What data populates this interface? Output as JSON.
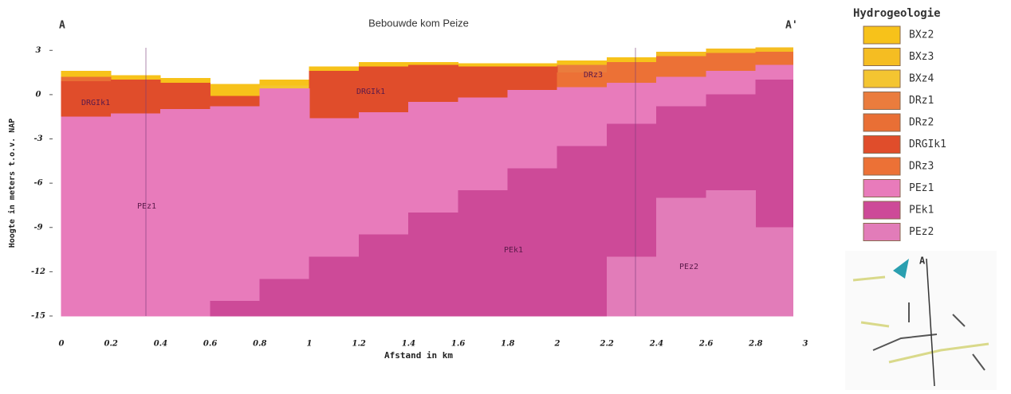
{
  "chart_data": {
    "type": "cross-section",
    "title": "Bebouwde kom Peize",
    "x_label": "Afstand in km",
    "y_label": "Hoogte in meters t.o.v. NAP",
    "section_labels": [
      "A",
      "A'"
    ],
    "legend_title": "Hydrogeologie",
    "unit_labels": [
      "DRGIk1",
      "DRGIk1",
      "DRz3",
      "PEz1",
      "PEk1",
      "PEz2"
    ],
    "xlim": [
      0,
      3
    ],
    "ylim": [
      -15,
      3.5
    ],
    "xticks": [
      0,
      0.2,
      0.4,
      0.6,
      0.8,
      1,
      1.2,
      1.4,
      1.6,
      1.8,
      2,
      2.2,
      2.4,
      2.6,
      2.8,
      3
    ],
    "yticks": [
      3,
      0,
      -3,
      -6,
      -9,
      -12,
      -15
    ],
    "bins": [
      0,
      0.2,
      0.4,
      0.6,
      0.8,
      1,
      1.2,
      1.4,
      1.6,
      1.8,
      2,
      2.2,
      2.4,
      2.6,
      2.8,
      2.95
    ],
    "series": [
      {
        "name": "BXz2",
        "color": "#f7c21a",
        "base": [
          1.2,
          1.0,
          0.8,
          -0.1,
          0.6,
          1.6,
          1.9,
          2.0,
          1.9,
          1.9,
          2.0,
          2.2,
          null,
          null,
          null
        ],
        "top": [
          1.6,
          1.3,
          1.1,
          0.7,
          1.0,
          1.9,
          2.2,
          2.2,
          2.1,
          2.1,
          2.3,
          2.5,
          null,
          null,
          null
        ]
      },
      {
        "name": "BXz3",
        "color": "#f5bd22",
        "base": [
          null,
          null,
          null,
          null,
          null,
          null,
          null,
          null,
          null,
          null,
          null,
          null,
          2.6,
          2.8,
          2.9
        ],
        "top": [
          null,
          null,
          null,
          null,
          null,
          null,
          null,
          null,
          null,
          null,
          null,
          null,
          2.9,
          3.1,
          3.2
        ]
      },
      {
        "name": "BXz4",
        "color": "#f4c531",
        "base": [
          null,
          null,
          null,
          null,
          0.4,
          null,
          null,
          null,
          null,
          null,
          null,
          null,
          null,
          null,
          null
        ],
        "top": [
          null,
          null,
          null,
          null,
          0.6,
          null,
          null,
          null,
          null,
          null,
          null,
          null,
          null,
          null,
          null
        ]
      },
      {
        "name": "DRz1",
        "color": "#ea7c3d",
        "base": [
          null,
          null,
          null,
          null,
          null,
          null,
          null,
          null,
          null,
          null,
          1.5,
          null,
          null,
          null,
          null
        ],
        "top": [
          null,
          null,
          null,
          null,
          null,
          null,
          null,
          null,
          null,
          null,
          2.0,
          null,
          null,
          null,
          null
        ]
      },
      {
        "name": "DRz2",
        "color": "#e96f35",
        "base": [
          0.9,
          null,
          null,
          null,
          null,
          null,
          null,
          null,
          null,
          null,
          null,
          null,
          null,
          null,
          null
        ],
        "top": [
          1.2,
          null,
          null,
          null,
          null,
          null,
          null,
          null,
          null,
          null,
          null,
          null,
          null,
          null,
          null
        ]
      },
      {
        "name": "DRGIk1",
        "color": "#e04d2b",
        "base": [
          -1.5,
          -1.3,
          -1.0,
          -0.8,
          null,
          -1.6,
          -1.2,
          -0.5,
          -0.2,
          0.3,
          null,
          null,
          null,
          null,
          null
        ],
        "top": [
          0.9,
          1.0,
          0.8,
          -0.1,
          null,
          1.6,
          1.9,
          2.0,
          1.9,
          1.9,
          null,
          null,
          null,
          null,
          null
        ]
      },
      {
        "name": "DRz3",
        "color": "#ec7136",
        "base": [
          null,
          null,
          null,
          null,
          null,
          null,
          null,
          null,
          null,
          null,
          0.5,
          0.8,
          1.2,
          1.6,
          2.0
        ],
        "top": [
          null,
          null,
          null,
          null,
          null,
          null,
          null,
          null,
          null,
          null,
          1.5,
          2.2,
          2.6,
          2.8,
          2.9
        ]
      },
      {
        "name": "PEz1",
        "color": "#e87bbb",
        "base": [
          -15,
          -15,
          -15,
          -14,
          -12.5,
          -11,
          -9.5,
          -8,
          -6.5,
          -5,
          -3.5,
          -2,
          -0.8,
          0,
          1.0
        ],
        "top": [
          -1.5,
          -1.3,
          -1.0,
          -0.8,
          0.4,
          -1.6,
          -1.2,
          -0.5,
          -0.2,
          0.3,
          0.5,
          0.8,
          1.2,
          1.6,
          2.0
        ]
      },
      {
        "name": "PEk1",
        "color": "#cd4a98",
        "base": [
          null,
          null,
          null,
          -15,
          -15,
          -15,
          -15,
          -15,
          -15,
          -15,
          -15,
          -11,
          -7,
          -6.5,
          -9
        ],
        "top": [
          null,
          null,
          null,
          -14,
          -12.5,
          -11,
          -9.5,
          -8,
          -6.5,
          -5,
          -3.5,
          -2,
          -0.8,
          0,
          1.0
        ]
      },
      {
        "name": "PEz2",
        "color": "#e27cb9",
        "base": [
          null,
          null,
          null,
          null,
          null,
          null,
          null,
          null,
          null,
          null,
          null,
          -15,
          -15,
          -15,
          -15
        ],
        "top": [
          null,
          null,
          null,
          null,
          null,
          null,
          null,
          null,
          null,
          null,
          null,
          -11,
          -7,
          -6.5,
          -9
        ]
      }
    ]
  }
}
